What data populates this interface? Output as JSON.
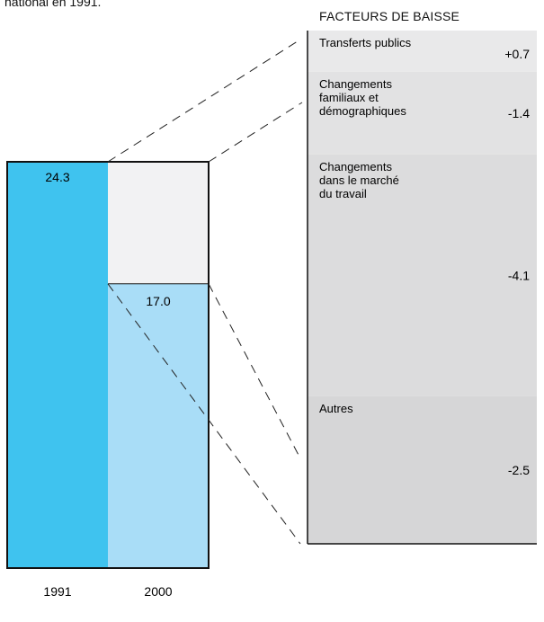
{
  "header": {
    "caption": "national en 1991.",
    "panel_title": "FACTEURS DE BAISSE"
  },
  "chart_data": {
    "type": "bar",
    "categories": [
      "1991",
      "2000"
    ],
    "values": [
      24.3,
      17.0
    ],
    "bar_value_labels": [
      "24.3",
      "17.0"
    ],
    "breakdown": {
      "title": "FACTEURS DE BAISSE",
      "items": [
        {
          "label": [
            "Transferts publics"
          ],
          "value": 0.7,
          "value_label": "+0.7",
          "color": "#e9e9ea"
        },
        {
          "label": [
            "Changements",
            "familiaux et",
            "démographiques"
          ],
          "value": -1.4,
          "value_label": "-1.4",
          "color": "#e2e2e3"
        },
        {
          "label": [
            "Changements",
            "dans le marché",
            "du travail"
          ],
          "value": -4.1,
          "value_label": "-4.1",
          "color": "#dcdcdd"
        },
        {
          "label": [
            "Autres"
          ],
          "value": -2.5,
          "value_label": "-2.5",
          "color": "#d6d6d7"
        }
      ]
    },
    "colors": {
      "bar_1991": "#3fc3ef",
      "bar_2000": "#a9ddf7",
      "gap": "#f2f2f3"
    }
  }
}
